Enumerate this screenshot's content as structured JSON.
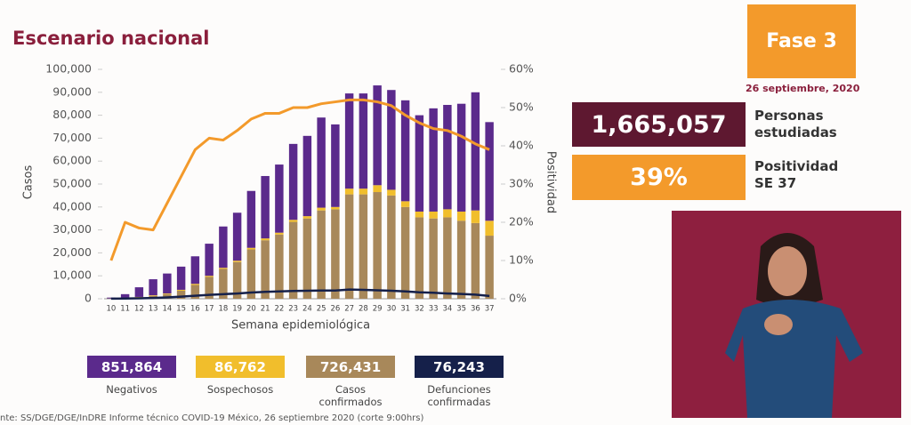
{
  "header": {
    "title": "Escenario nacional"
  },
  "chart_data": {
    "type": "bar",
    "stacked": true,
    "categories": [
      "10",
      "11",
      "12",
      "13",
      "14",
      "15",
      "16",
      "17",
      "18",
      "19",
      "20",
      "21",
      "22",
      "23",
      "24",
      "25",
      "26",
      "27",
      "28",
      "29",
      "30",
      "31",
      "32",
      "33",
      "34",
      "35",
      "36",
      "37"
    ],
    "x_label": "Semana epidemiológica",
    "y_label": "Casos",
    "y2_label": "Positividad",
    "ylim": [
      0,
      100000
    ],
    "yticks": [
      0,
      {
        "value": 10000,
        "label": "10,000"
      },
      {
        "value": 20000,
        "label": "20,000"
      },
      {
        "value": 30000,
        "label": "30,000"
      },
      {
        "value": 40000,
        "label": "40,000"
      },
      {
        "value": 50000,
        "label": "50,000"
      },
      {
        "value": 60000,
        "label": "60,000"
      },
      {
        "value": 70000,
        "label": "70,000"
      },
      {
        "value": 80000,
        "label": "80,000"
      },
      {
        "value": 90000,
        "label": "90,000"
      },
      {
        "value": 100000,
        "label": "100,000"
      }
    ],
    "y2lim": [
      0,
      60
    ],
    "y2ticks": [
      {
        "value": 0,
        "label": "0%"
      },
      {
        "value": 10,
        "label": "10%"
      },
      {
        "value": 20,
        "label": "20%"
      },
      {
        "value": 30,
        "label": "30%"
      },
      {
        "value": 40,
        "label": "40%"
      },
      {
        "value": 50,
        "label": "50%"
      },
      {
        "value": 60,
        "label": "60%"
      }
    ],
    "series": [
      {
        "name": "Negativos",
        "type": "bar",
        "color": "#5b2a8c",
        "total": "851,864",
        "values": [
          400,
          1700,
          4200,
          7000,
          8700,
          10100,
          12000,
          14000,
          18000,
          20900,
          24800,
          27200,
          29700,
          33100,
          35000,
          39300,
          36000,
          41500,
          41500,
          43500,
          43500,
          44000,
          42000,
          45000,
          45500,
          47000,
          51500,
          43000
        ]
      },
      {
        "name": "Sospechosos",
        "type": "bar",
        "color": "#f1be2c",
        "total": "86,762",
        "values": [
          50,
          100,
          200,
          300,
          300,
          400,
          500,
          500,
          500,
          600,
          700,
          800,
          800,
          900,
          1000,
          1200,
          1000,
          2500,
          2500,
          3000,
          2500,
          2500,
          2500,
          3000,
          3500,
          4000,
          5500,
          6500
        ]
      },
      {
        "name": "Casos confirmados",
        "type": "bar",
        "color": "#a8885a",
        "total": "726,431",
        "values": [
          50,
          200,
          600,
          1200,
          2000,
          3500,
          6000,
          9500,
          13000,
          16000,
          21500,
          25500,
          28000,
          33500,
          35000,
          38500,
          39000,
          45500,
          45500,
          46500,
          45000,
          40000,
          35500,
          35000,
          35500,
          34000,
          33000,
          27500
        ]
      },
      {
        "name": "Defunciones confirmadas",
        "type": "line",
        "color": "#15204a",
        "total": "76,243",
        "values": [
          50,
          100,
          200,
          350,
          600,
          900,
          1300,
          1700,
          2000,
          2300,
          2700,
          3000,
          3200,
          3400,
          3500,
          3600,
          3600,
          4000,
          3900,
          3700,
          3500,
          3200,
          2800,
          2600,
          2300,
          2100,
          1800,
          1200
        ]
      },
      {
        "type": "line",
        "axis": "y2",
        "color": "#f39a2b",
        "values": [
          10,
          20,
          18.5,
          18,
          25,
          32,
          39,
          42,
          41.5,
          44,
          47,
          48.5,
          48.5,
          50,
          50,
          51,
          51.5,
          52,
          52,
          51.5,
          50.5,
          48,
          46,
          44.5,
          44,
          42.5,
          40.5,
          39
        ]
      }
    ]
  },
  "panel": {
    "phase": "Fase 3",
    "date": "26 septiembre, 2020",
    "studied": {
      "value": "1,665,057",
      "label": "Personas estudiadas"
    },
    "positivity": {
      "value": "39%",
      "label": "Positividad SE 37"
    }
  },
  "footer": "nte: SS/DGE/DGE/InDRE Informe técnico COVID-19 México, 26 septiembre 2020 (corte 9:00hrs)"
}
